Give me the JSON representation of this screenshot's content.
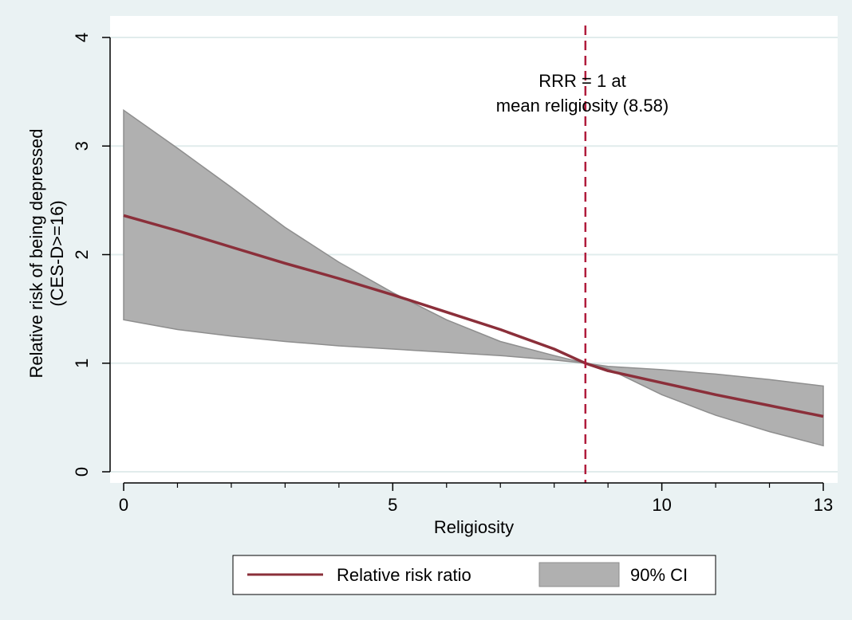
{
  "chart_data": {
    "type": "line",
    "title": "",
    "xlabel": "Religiosity",
    "ylabel_lines": [
      "Relative risk of being depressed",
      "(CES-D>=16)"
    ],
    "xlim": [
      0,
      13
    ],
    "ylim": [
      0,
      4
    ],
    "x_ticks": [
      0,
      5,
      10,
      13
    ],
    "x_minor_ticks": [
      1,
      2,
      3,
      4,
      6,
      7,
      8,
      9,
      11,
      12
    ],
    "y_ticks": [
      0,
      1,
      2,
      3,
      4
    ],
    "grid": "horizontal",
    "x": [
      0,
      1,
      2,
      3,
      4,
      5,
      6,
      7,
      8,
      8.58,
      9,
      10,
      11,
      12,
      13
    ],
    "series": [
      {
        "name": "Relative risk ratio",
        "type": "line",
        "color": "#8b2f3a",
        "values": [
          2.36,
          2.22,
          2.07,
          1.92,
          1.78,
          1.63,
          1.47,
          1.31,
          1.13,
          1.0,
          0.93,
          0.82,
          0.71,
          0.61,
          0.51
        ]
      },
      {
        "name": "90% CI",
        "type": "band",
        "color": "#b0b0b0",
        "lower": [
          1.4,
          1.31,
          1.25,
          1.2,
          1.16,
          1.13,
          1.1,
          1.07,
          1.03,
          1.0,
          0.95,
          0.71,
          0.52,
          0.37,
          0.24
        ],
        "upper": [
          3.33,
          2.98,
          2.62,
          2.25,
          1.93,
          1.65,
          1.4,
          1.2,
          1.07,
          1.0,
          0.97,
          0.94,
          0.9,
          0.85,
          0.79
        ]
      }
    ],
    "reference_line": {
      "axis": "x",
      "value": 8.58,
      "style": "dashed",
      "color": "#b01c3c"
    },
    "annotation": {
      "lines": [
        "RRR = 1 at",
        "mean religiosity (8.58)"
      ]
    },
    "legend": {
      "position": "bottom"
    }
  }
}
